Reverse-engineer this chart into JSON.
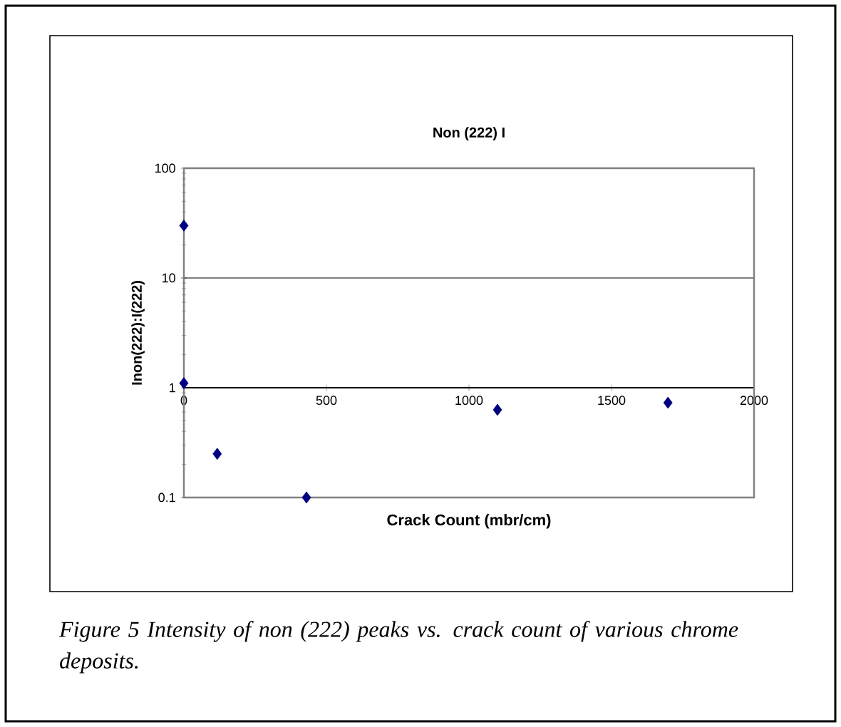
{
  "chart_data": {
    "type": "scatter",
    "title": "Non (222) I",
    "xlabel": "Crack Count (mbr/cm)",
    "ylabel": "Inon(222):I(222)",
    "annotations": [
      "*Figure 5  Intensity of non (222) peaks vs. crack count of various chrome deposits.*"
    ],
    "x": [
      0,
      0,
      117,
      430,
      1100,
      1698
    ],
    "values": [
      30,
      1.1,
      0.25,
      0.1,
      0.63,
      0.73
    ],
    "color": "#000080",
    "marker": "diamond",
    "log": "y",
    "grid": "y",
    "xlim": [
      0,
      2000
    ],
    "ylim": [
      0.1,
      100
    ],
    "xticks": [
      0,
      500,
      1000,
      1500,
      2000
    ],
    "yticks": [
      0.1,
      1,
      10,
      100
    ]
  }
}
